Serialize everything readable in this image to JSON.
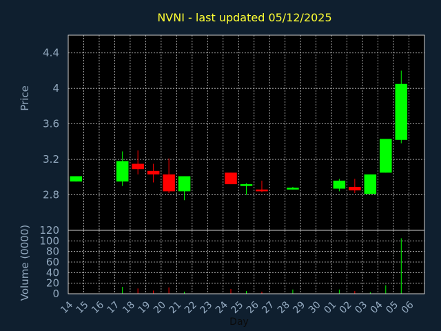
{
  "chart_data": {
    "type": "candlestick",
    "title": "NVNI - last updated 05/12/2025",
    "xlabel": "Day",
    "price_panel": {
      "ylabel": "Price",
      "yticks": [
        "2.8",
        "3.2",
        "3.6",
        "4",
        "4.4"
      ],
      "ylim": [
        2.4,
        4.6
      ]
    },
    "volume_panel": {
      "ylabel": "Volume (0000)",
      "yticks": [
        "0",
        "20",
        "40",
        "60",
        "80",
        "100",
        "120"
      ],
      "ylim": [
        0,
        120
      ]
    },
    "x_labels": [
      "14",
      "15",
      "16",
      "17",
      "18",
      "19",
      "20",
      "21",
      "22",
      "23",
      "24",
      "25",
      "26",
      "27",
      "28",
      "29",
      "30",
      "01",
      "02",
      "03",
      "04",
      "05",
      "06"
    ],
    "candles": [
      {
        "day": "14",
        "open": 2.95,
        "high": 3.01,
        "low": 2.95,
        "close": 3.01,
        "volume": 0
      },
      {
        "day": "17",
        "open": 2.95,
        "high": 3.29,
        "low": 2.9,
        "close": 3.18,
        "volume": 13
      },
      {
        "day": "18",
        "open": 3.15,
        "high": 3.3,
        "low": 3.03,
        "close": 3.09,
        "volume": 10
      },
      {
        "day": "19",
        "open": 3.07,
        "high": 3.15,
        "low": 2.94,
        "close": 3.03,
        "volume": 6
      },
      {
        "day": "20",
        "open": 3.03,
        "high": 3.21,
        "low": 2.82,
        "close": 2.84,
        "volume": 12
      },
      {
        "day": "21",
        "open": 2.84,
        "high": 3.01,
        "low": 2.74,
        "close": 3.01,
        "volume": 4
      },
      {
        "day": "24",
        "open": 3.05,
        "high": 3.05,
        "low": 2.92,
        "close": 2.92,
        "volume": 9
      },
      {
        "day": "25",
        "open": 2.9,
        "high": 2.93,
        "low": 2.8,
        "close": 2.92,
        "volume": 5
      },
      {
        "day": "26",
        "open": 2.86,
        "high": 2.96,
        "low": 2.83,
        "close": 2.84,
        "volume": 4
      },
      {
        "day": "28",
        "open": 2.86,
        "high": 2.89,
        "low": 2.86,
        "close": 2.88,
        "volume": 8
      },
      {
        "day": "01",
        "open": 2.87,
        "high": 2.98,
        "low": 2.84,
        "close": 2.96,
        "volume": 8
      },
      {
        "day": "02",
        "open": 2.89,
        "high": 2.98,
        "low": 2.82,
        "close": 2.85,
        "volume": 5
      },
      {
        "day": "03",
        "open": 2.81,
        "high": 3.03,
        "low": 2.81,
        "close": 3.03,
        "volume": 3
      },
      {
        "day": "04",
        "open": 3.05,
        "high": 3.43,
        "low": 3.05,
        "close": 3.43,
        "volume": 16
      },
      {
        "day": "05",
        "open": 3.42,
        "high": 4.2,
        "low": 3.38,
        "close": 4.05,
        "volume": 105
      }
    ],
    "colors": {
      "background": "#0f1f2f",
      "plot_area": "#000000",
      "up": "#00ff00",
      "down": "#ff0000",
      "grid": "#c8c8c8",
      "title": "#ffff33",
      "axis_text": "#93a9bf"
    }
  }
}
